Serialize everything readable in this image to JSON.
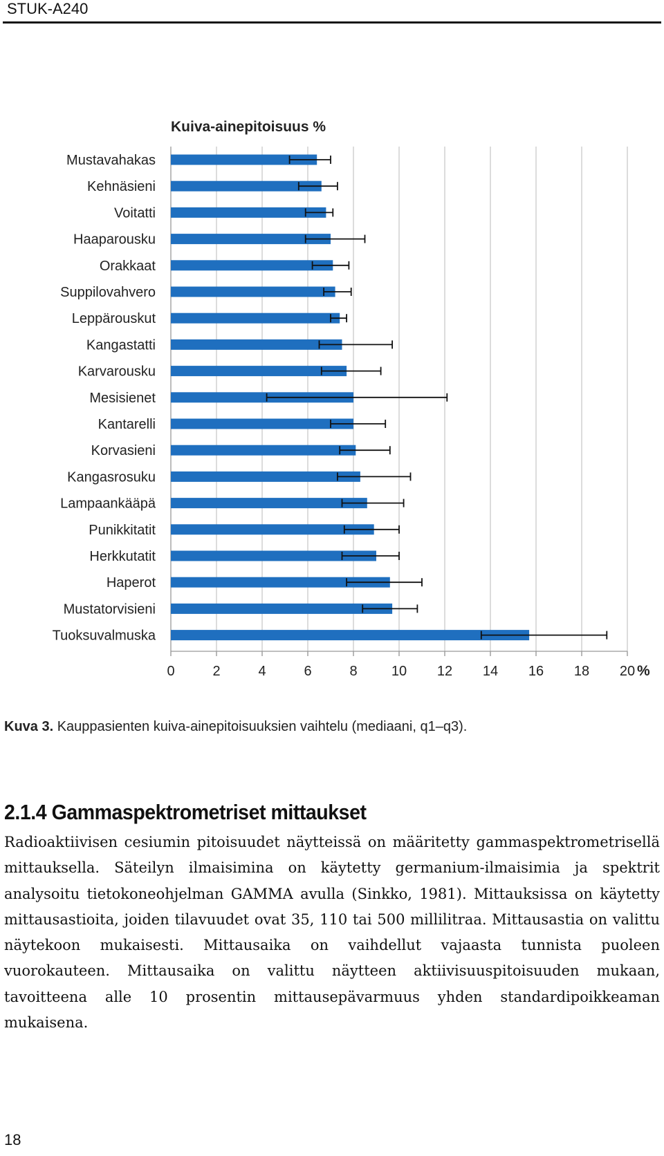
{
  "header": {
    "series_title": "STUK-A240"
  },
  "chart_data": {
    "type": "bar",
    "orientation": "horizontal",
    "title": "Kuiva-ainepitoisuus %",
    "xlabel": "",
    "ylabel": "",
    "unit": "%",
    "xlim": [
      0,
      20
    ],
    "xticks": [
      0,
      2,
      4,
      6,
      8,
      10,
      12,
      14,
      16,
      18,
      20
    ],
    "grid": true,
    "bar_color": "#1f6fbf",
    "categories": [
      "Mustavahakas",
      "Kehnäsieni",
      "Voitatti",
      "Haaparousku",
      "Orakkaat",
      "Suppilovahvero",
      "Leppärouskut",
      "Kangastatti",
      "Karvarousku",
      "Mesisienet",
      "Kantarelli",
      "Korvasieni",
      "Kangasrosuku",
      "Lampaankääpä",
      "Punikkitatit",
      "Herkkutatit",
      "Haperot",
      "Mustatorvisieni",
      "Tuoksuvalmuska"
    ],
    "values": [
      6.4,
      6.6,
      6.8,
      7.0,
      7.1,
      7.2,
      7.4,
      7.5,
      7.7,
      8.0,
      8.0,
      8.1,
      8.3,
      8.6,
      8.9,
      9.0,
      9.6,
      9.7,
      15.7
    ],
    "q1": [
      5.2,
      5.6,
      5.9,
      5.9,
      6.2,
      6.7,
      7.0,
      6.5,
      6.6,
      4.2,
      7.0,
      7.4,
      7.3,
      7.5,
      7.6,
      7.5,
      7.7,
      8.4,
      13.6
    ],
    "q3": [
      7.0,
      7.3,
      7.1,
      8.5,
      7.8,
      7.9,
      7.7,
      9.7,
      9.2,
      12.1,
      9.4,
      9.6,
      10.5,
      10.2,
      10.0,
      10.0,
      11.0,
      10.8,
      19.1
    ]
  },
  "caption": {
    "label": "Kuva 3.",
    "text": " Kauppasienten kuiva-ainepitoisuuksien vaihtelu (mediaani, q1–q3)."
  },
  "section": {
    "heading": "2.1.4 Gammaspektrometriset mittaukset",
    "paragraph": "Radioaktiivisen cesiumin pitoisuudet näytteissä on määritetty gammaspektrometrisellä mittauksella. Säteilyn ilmaisimina on käytetty germanium-ilmaisimia ja spektrit analysoitu tietokoneohjelman GAMMA avulla (Sinkko, 1981). Mittauksissa on käytetty mittausastioita, joiden tilavuudet ovat 35, 110 tai 500 millilitraa. Mittausastia on valittu näytekoon mukaisesti. Mittausaika on vaihdellut vajaasta tunnista puoleen vuorokauteen. Mittausaika on valittu näytteen aktiivisuuspitoisuuden mukaan, tavoitteena alle 10 prosentin mittausepävarmuus yhden standardipoikkeaman mukaisena."
  },
  "footer": {
    "page_number": "18"
  }
}
